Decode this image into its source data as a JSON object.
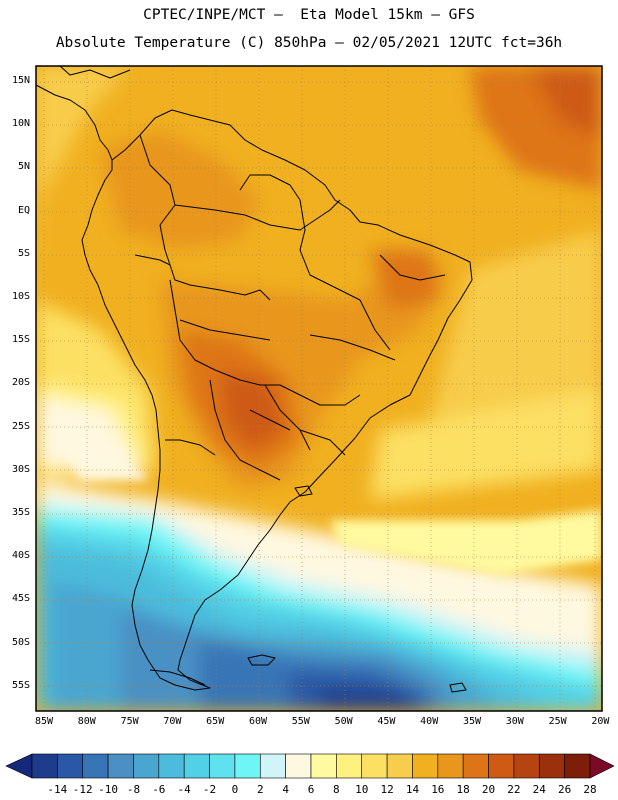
{
  "header": {
    "line1": "CPTEC/INPE/MCT –  Eta Model 15km – GFS",
    "line2": "Absolute Temperature (C) 850hPa – 02/05/2021 12UTC fct=36h"
  },
  "axes": {
    "lat_labels": [
      "15N",
      "10N",
      "5N",
      "EQ",
      "5S",
      "10S",
      "15S",
      "20S",
      "25S",
      "30S",
      "35S",
      "40S",
      "45S",
      "50S",
      "55S"
    ],
    "lon_labels": [
      "85W",
      "80W",
      "75W",
      "70W",
      "65W",
      "60W",
      "55W",
      "50W",
      "45W",
      "40W",
      "35W",
      "30W",
      "25W",
      "20W"
    ]
  },
  "colorbar": {
    "labels": [
      "-14",
      "-12",
      "-10",
      "-8",
      "-6",
      "-4",
      "-2",
      "0",
      "2",
      "4",
      "6",
      "8",
      "10",
      "12",
      "14",
      "16",
      "18",
      "20",
      "22",
      "24",
      "26",
      "28"
    ],
    "colors": [
      "#1e3c8c",
      "#2a58a6",
      "#3874b6",
      "#4a90c4",
      "#4aa6d0",
      "#4cbcdc",
      "#52d0e6",
      "#60e2ee",
      "#6ef6f6",
      "#d0f4f8",
      "#fff8e0",
      "#fffaa0",
      "#fff080",
      "#fce064",
      "#f8cc4c",
      "#f0b020",
      "#e8961c",
      "#de7418",
      "#ce5a14",
      "#b64410",
      "#9c300c",
      "#7c1e0a"
    ],
    "low_color": "#14287c",
    "high_color": "#7a0a28"
  }
}
